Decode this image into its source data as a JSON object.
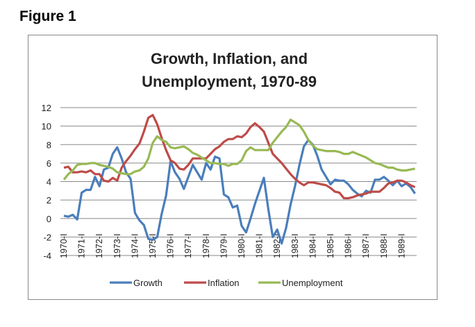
{
  "figure_label": "Figure 1",
  "chart_data": {
    "type": "line",
    "title_lines": [
      "Growth, Inflation, and",
      "Unemployment, 1970-89"
    ],
    "xlabel": "",
    "ylabel": "",
    "ylim": [
      -4,
      12
    ],
    "yticks": [
      12,
      10,
      8,
      6,
      4,
      2,
      0,
      -2,
      -4
    ],
    "x_tick_labels": [
      "1970-I",
      "1971-I",
      "1972-I",
      "1973-I",
      "1974-I",
      "1975-I",
      "1976-I",
      "1977-I",
      "1978-I",
      "1979-I",
      "1980-I",
      "1981-I",
      "1982-I",
      "1983-I",
      "1984-I",
      "1985-I",
      "1986-I",
      "1987-I",
      "1988-I",
      "1989-I"
    ],
    "x_frequency": "quarterly, 1970-I to 1989-IV",
    "grid": true,
    "legend_position": "bottom",
    "series": [
      {
        "name": "Growth",
        "color": "#4a7ebb",
        "values": [
          0.3,
          0.2,
          0.4,
          -0.1,
          2.8,
          3.1,
          3.1,
          4.5,
          3.5,
          5.3,
          5.5,
          7.0,
          7.7,
          6.5,
          5.0,
          4.3,
          0.6,
          -0.2,
          -0.7,
          -2.2,
          -2.3,
          -2.0,
          0.5,
          2.5,
          6.2,
          5.0,
          4.3,
          3.2,
          4.5,
          5.8,
          5.0,
          4.2,
          6.0,
          5.3,
          6.7,
          6.5,
          2.6,
          2.3,
          1.2,
          1.4,
          -0.8,
          -1.5,
          0.0,
          1.6,
          3.0,
          4.4,
          1.0,
          -2.0,
          -1.2,
          -2.7,
          -1.0,
          1.5,
          3.5,
          5.8,
          7.8,
          8.5,
          8.0,
          6.8,
          5.3,
          4.5,
          3.7,
          4.2,
          4.1,
          4.1,
          3.7,
          3.1,
          2.7,
          2.4,
          3.0,
          2.8,
          4.2,
          4.2,
          4.5,
          4.1,
          3.6,
          4.1,
          3.5,
          3.8,
          3.4,
          2.7
        ]
      },
      {
        "name": "Inflation",
        "color": "#be4b48",
        "values": [
          5.5,
          5.6,
          5.0,
          5.0,
          5.1,
          5.0,
          5.2,
          4.8,
          4.8,
          4.1,
          4.0,
          4.4,
          4.1,
          5.5,
          6.2,
          6.8,
          7.5,
          8.1,
          9.4,
          10.9,
          11.2,
          10.2,
          8.7,
          7.4,
          6.3,
          6.0,
          5.4,
          5.3,
          5.8,
          6.5,
          6.5,
          6.5,
          6.5,
          7.0,
          7.5,
          7.8,
          8.3,
          8.6,
          8.6,
          8.9,
          8.8,
          9.2,
          9.9,
          10.3,
          9.9,
          9.4,
          8.2,
          7.0,
          6.5,
          6.0,
          5.4,
          4.8,
          4.3,
          3.9,
          3.6,
          3.9,
          3.9,
          3.8,
          3.7,
          3.6,
          3.3,
          2.9,
          2.8,
          2.2,
          2.2,
          2.3,
          2.5,
          2.6,
          2.7,
          2.9,
          2.9,
          2.9,
          3.3,
          3.8,
          3.9,
          4.1,
          4.1,
          3.9,
          3.6,
          3.4
        ]
      },
      {
        "name": "Unemployment",
        "color": "#98b954",
        "values": [
          4.2,
          4.8,
          5.2,
          5.8,
          5.9,
          5.9,
          6.0,
          6.0,
          5.8,
          5.7,
          5.6,
          5.4,
          5.0,
          4.9,
          4.8,
          4.8,
          5.1,
          5.2,
          5.6,
          6.5,
          8.2,
          8.9,
          8.5,
          8.3,
          7.7,
          7.6,
          7.7,
          7.8,
          7.5,
          7.1,
          6.9,
          6.6,
          6.3,
          6.0,
          6.0,
          5.9,
          5.9,
          5.7,
          5.9,
          5.9,
          6.3,
          7.3,
          7.7,
          7.4,
          7.4,
          7.4,
          7.4,
          8.2,
          8.8,
          9.4,
          9.9,
          10.7,
          10.4,
          10.1,
          9.4,
          8.5,
          7.9,
          7.5,
          7.4,
          7.3,
          7.3,
          7.3,
          7.2,
          7.0,
          7.0,
          7.2,
          7.0,
          6.8,
          6.6,
          6.3,
          6.0,
          5.9,
          5.7,
          5.5,
          5.5,
          5.3,
          5.2,
          5.2,
          5.3,
          5.4
        ]
      }
    ]
  }
}
